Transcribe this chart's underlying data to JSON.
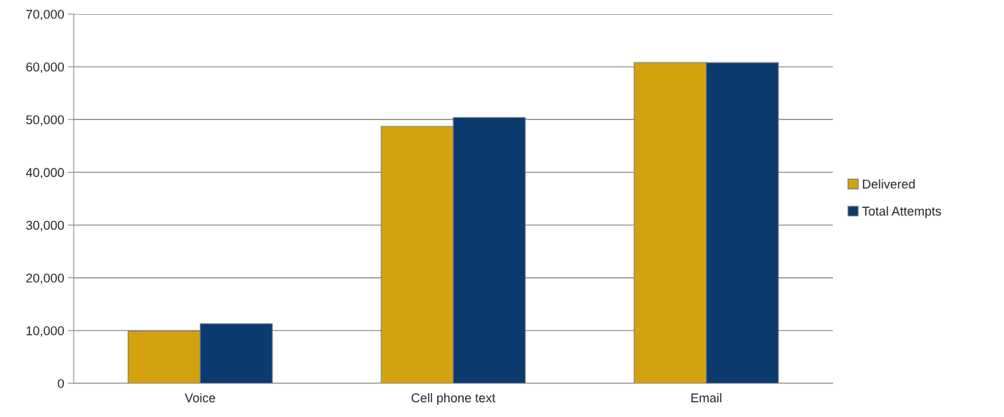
{
  "chart_data": {
    "type": "bar",
    "categories": [
      "Voice",
      "Cell phone text",
      "Email"
    ],
    "series": [
      {
        "name": "Delivered",
        "color": "#d4a20f",
        "values": [
          9900,
          48700,
          60800
        ]
      },
      {
        "name": "Total Attempts",
        "color": "#0b3a6e",
        "values": [
          11300,
          50400,
          60800
        ]
      }
    ],
    "ylim": [
      0,
      70000
    ],
    "yticks": [
      {
        "value": 0,
        "label": "0"
      },
      {
        "value": 10000,
        "label": "10,000"
      },
      {
        "value": 20000,
        "label": "20,000"
      },
      {
        "value": 30000,
        "label": "30,000"
      },
      {
        "value": 40000,
        "label": "40,000"
      },
      {
        "value": 50000,
        "label": "50,000"
      },
      {
        "value": 60000,
        "label": "60,000"
      },
      {
        "value": 70000,
        "label": "70,000"
      }
    ],
    "grid": "y",
    "legend": "right"
  }
}
